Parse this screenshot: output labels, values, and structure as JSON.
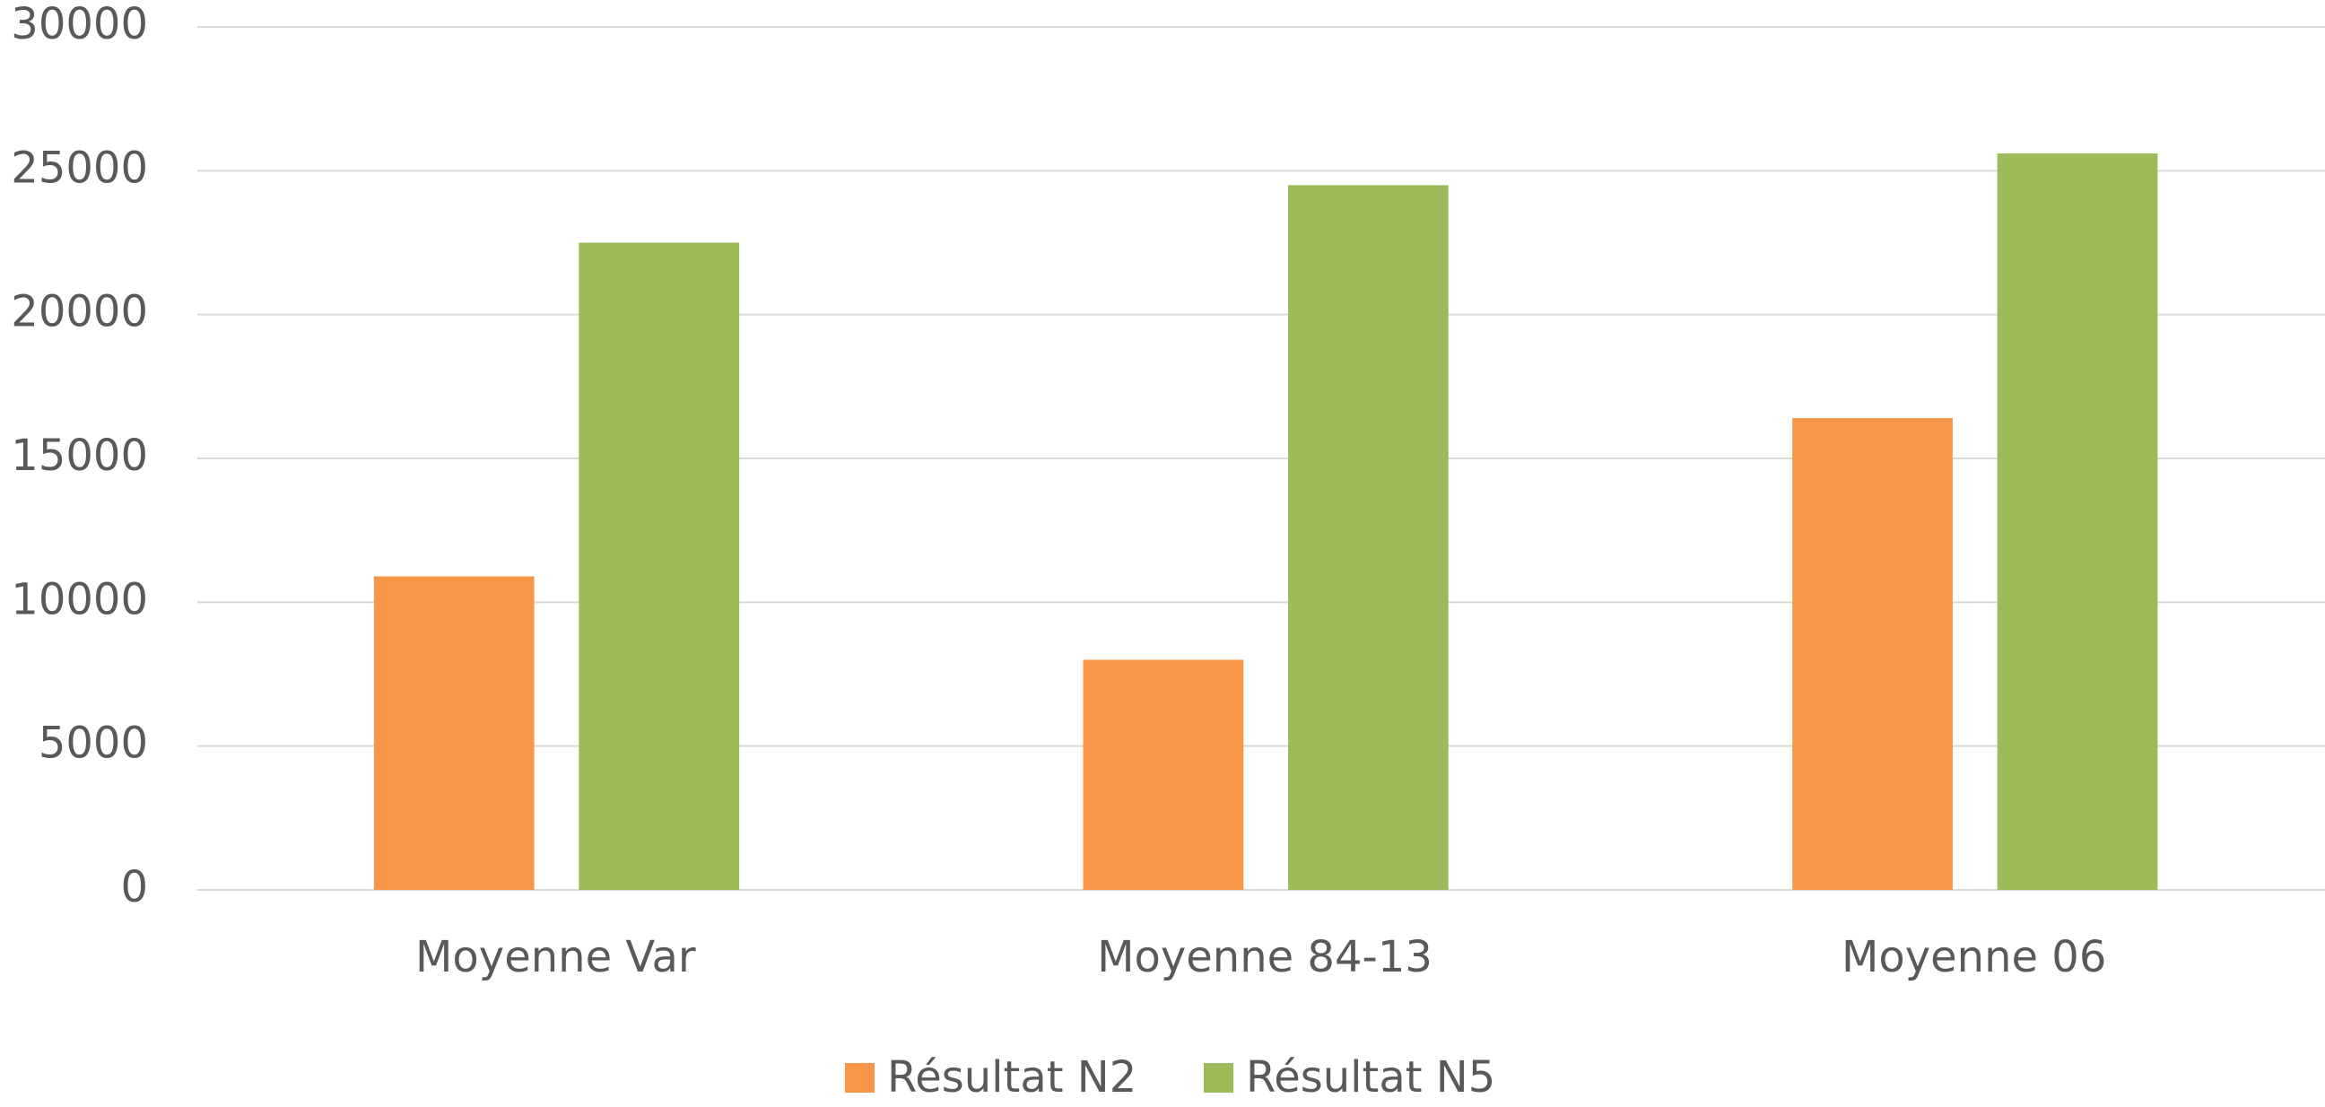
{
  "chart_data": {
    "type": "bar",
    "categories": [
      "Moyenne Var",
      "Moyenne 84-13",
      "Moyenne 06"
    ],
    "series": [
      {
        "name": "Résultat N2",
        "color": "#f79646",
        "values": [
          10900,
          8000,
          16400
        ]
      },
      {
        "name": "Résultat N5",
        "color": "#9bbb59",
        "values": [
          22500,
          24500,
          25600
        ]
      }
    ],
    "ylim": [
      0,
      30000
    ],
    "yticks": [
      0,
      5000,
      10000,
      15000,
      20000,
      25000,
      30000
    ],
    "grid": true,
    "legend": "bottom"
  }
}
